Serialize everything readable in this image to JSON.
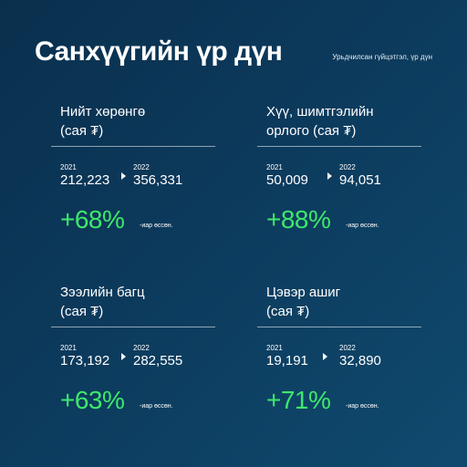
{
  "header": {
    "title": "Санхүүгийн үр дүн",
    "subtitle": "Урьдчилсан гүйцэтгэл, үр дүн"
  },
  "colors": {
    "accent": "#3ee86a",
    "background": "#0c3a5c"
  },
  "cards": [
    {
      "title_line1": "Нийт хөрөнгө",
      "title_line2": "(сая ₮)",
      "year_from": "2021",
      "value_from": "212,223",
      "year_to": "2022",
      "value_to": "356,331",
      "growth": "+68%",
      "growth_suffix": "-иар өссөн."
    },
    {
      "title_line1": "Хүү, шимтгэлийн",
      "title_line2": "орлого (сая ₮)",
      "year_from": "2021",
      "value_from": "50,009",
      "year_to": "2022",
      "value_to": "94,051",
      "growth": "+88%",
      "growth_suffix": "-иар өссөн."
    },
    {
      "title_line1": "Зээлийн багц",
      "title_line2": "(сая ₮)",
      "year_from": "2021",
      "value_from": "173,192",
      "year_to": "2022",
      "value_to": "282,555",
      "growth": "+63%",
      "growth_suffix": "-иар өссөн."
    },
    {
      "title_line1": "Цэвэр ашиг",
      "title_line2": "(сая ₮)",
      "year_from": "2021",
      "value_from": "19,191",
      "year_to": "2022",
      "value_to": "32,890",
      "growth": "+71%",
      "growth_suffix": "-иар өссөн."
    }
  ]
}
